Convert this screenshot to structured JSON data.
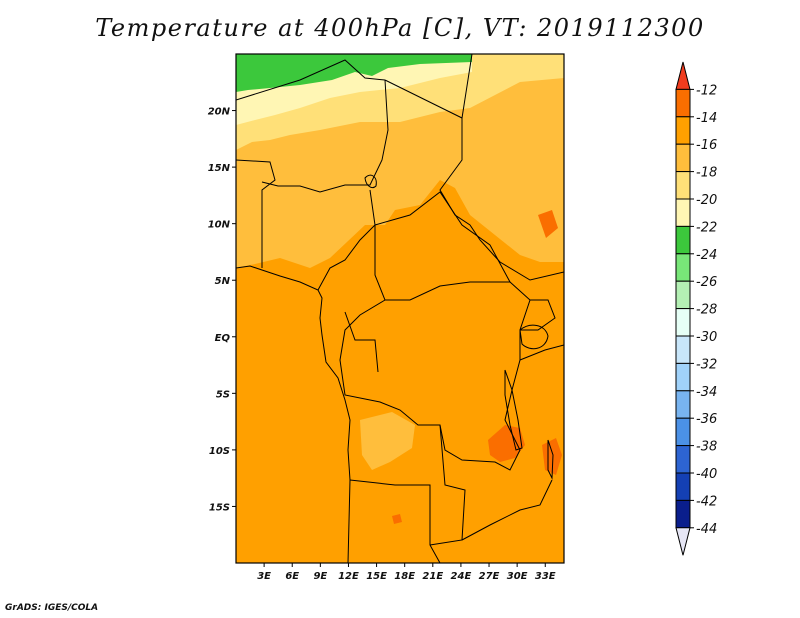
{
  "title": "Temperature at 400hPa [C], VT: 2019112300",
  "credit": "GrADS: IGES/COLA",
  "map": {
    "lat_labels": [
      "20N",
      "15N",
      "10N",
      "5N",
      "EQ",
      "5S",
      "10S",
      "15S"
    ],
    "lat_values": [
      20,
      15,
      10,
      5,
      0,
      -5,
      -10,
      -15
    ],
    "lon_labels": [
      "3E",
      "6E",
      "9E",
      "12E",
      "15E",
      "18E",
      "21E",
      "24E",
      "27E",
      "30E",
      "33E"
    ],
    "lon_values": [
      3,
      6,
      9,
      12,
      15,
      18,
      21,
      24,
      27,
      30,
      33
    ],
    "extent": {
      "lon_min": 0,
      "lon_max": 35,
      "lat_min": -20,
      "lat_max": 25
    }
  },
  "colorbar": {
    "labels": [
      "-12",
      "-14",
      "-16",
      "-18",
      "-20",
      "-22",
      "-24",
      "-26",
      "-28",
      "-30",
      "-32",
      "-34",
      "-36",
      "-38",
      "-40",
      "-42",
      "-44"
    ],
    "colors": [
      "#f03c1e",
      "#fa6e00",
      "#ffa000",
      "#ffbe3c",
      "#ffe078",
      "#fff6b4",
      "#3cc83c",
      "#78e678",
      "#b4f0b4",
      "#e6fff6",
      "#c8e6fa",
      "#a0d2fa",
      "#78b4f0",
      "#4b91e6",
      "#2d64d2",
      "#1440b4",
      "#0a1e8c",
      "#e6e6f5"
    ]
  }
}
